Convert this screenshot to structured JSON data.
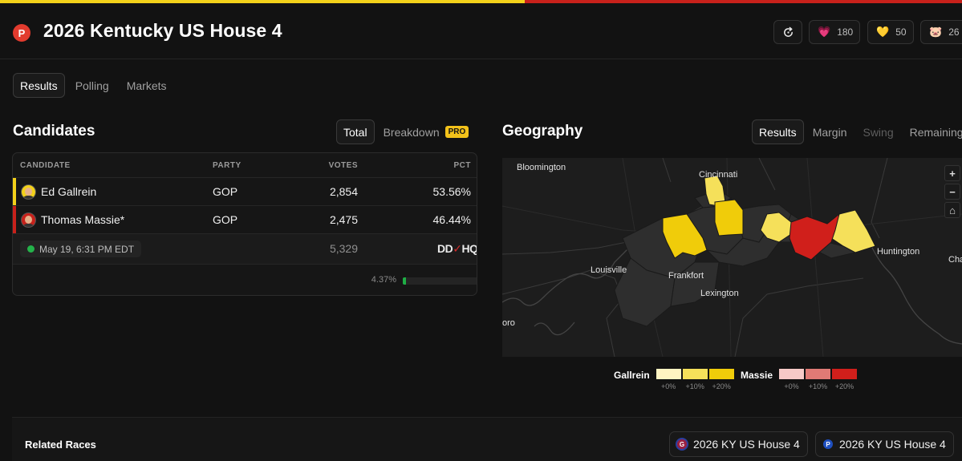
{
  "header": {
    "logo_letter": "P",
    "title": "2026 Kentucky US House 4",
    "refresh_icon": "refresh-icon",
    "reactions": [
      {
        "emoji": "💗",
        "icon": "heart-icon",
        "count": "180"
      },
      {
        "emoji": "💛",
        "icon": "yellow-heart-icon",
        "count": "50"
      },
      {
        "emoji": "🐷",
        "icon": "pig-icon",
        "count": "26"
      }
    ]
  },
  "main_tabs": [
    "Results",
    "Polling",
    "Markets"
  ],
  "candidates": {
    "title": "Candidates",
    "toggle": {
      "total": "Total",
      "breakdown": "Breakdown",
      "pro": "PRO"
    },
    "columns": {
      "candidate": "CANDIDATE",
      "party": "PARTY",
      "votes": "VOTES",
      "pct": "PCT"
    },
    "rows": [
      {
        "name": "Ed Gallrein",
        "party": "GOP",
        "votes": "2,854",
        "pct": "53.56%",
        "color": "#f3d11a"
      },
      {
        "name": "Thomas Massie*",
        "party": "GOP",
        "votes": "2,475",
        "pct": "46.44%",
        "color": "#c8211b"
      }
    ],
    "timestamp": "May 19, 6:31 PM EDT",
    "total_votes": "5,329",
    "source_logo": {
      "pre": "DD",
      "post": "HQ"
    },
    "reporting_pct_label": "4.37%",
    "reporting_fraction": 0.0437
  },
  "geography": {
    "title": "Geography",
    "tabs": [
      "Results",
      "Margin",
      "Swing",
      "Remaining"
    ],
    "map_labels": [
      "Bloomington",
      "Cincinnati",
      "Louisville",
      "Frankfort",
      "Lexington",
      "Huntington",
      "Cha",
      "oro"
    ],
    "zoom": {
      "plus": "+",
      "minus": "−",
      "home": "⌂"
    },
    "legend": [
      {
        "name": "Gallrein",
        "swatches": [
          {
            "color": "#fff4c2",
            "label": "+0%"
          },
          {
            "color": "#f5e05a",
            "label": "+10%"
          },
          {
            "color": "#f0cc0a",
            "label": "+20%"
          }
        ]
      },
      {
        "name": "Massie",
        "swatches": [
          {
            "color": "#f6c9c7",
            "label": "+0%"
          },
          {
            "color": "#e07a75",
            "label": "+10%"
          },
          {
            "color": "#d01f1b",
            "label": "+20%"
          }
        ]
      }
    ]
  },
  "related": {
    "title": "Related Races",
    "races": [
      {
        "badge": "G",
        "badge_color": "#9b2040",
        "label": "2026 KY US House 4"
      },
      {
        "badge": "P",
        "badge_color": "#1f4fbf",
        "label": "2026 KY US House 4"
      }
    ]
  }
}
